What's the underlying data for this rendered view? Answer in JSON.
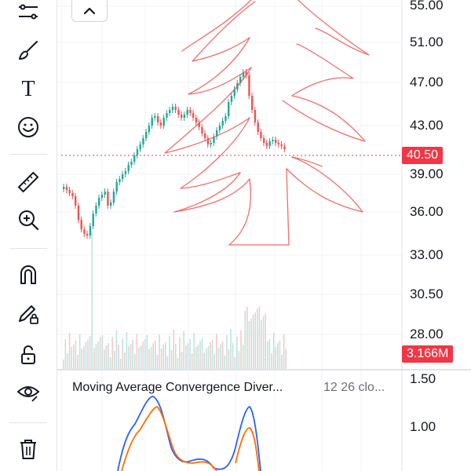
{
  "toolbar": {
    "tools": [
      {
        "icon": "trend-lines-icon"
      },
      {
        "icon": "brush-icon"
      },
      {
        "icon": "text-icon",
        "glyph": "T"
      },
      {
        "icon": "emoji-icon"
      },
      {
        "icon": "ruler-icon"
      },
      {
        "icon": "zoom-in-icon"
      },
      {
        "icon": "magnet-icon"
      },
      {
        "icon": "pencil-lock-icon"
      },
      {
        "icon": "lock-icon"
      },
      {
        "icon": "eye-icon"
      },
      {
        "icon": "trash-icon"
      }
    ]
  },
  "collapse_button": {
    "icon": "chevron-up-icon"
  },
  "price_axis": {
    "labels": [
      "55.00",
      "51.00",
      "47.00",
      "43.00",
      "39.00",
      "36.00",
      "33.00",
      "30.50",
      "28.00"
    ]
  },
  "current_price": {
    "value": "40.50",
    "color": "#f23645"
  },
  "volume": {
    "value": "3.166M",
    "color": "#f23645"
  },
  "macd": {
    "title": "Moving Average Convergence Diver...",
    "params": "12 26 clo...",
    "axis_labels": [
      "1.50",
      "1.00"
    ]
  },
  "colors": {
    "up": "#26a69a",
    "down": "#ef5350",
    "drawing": "#ef5350",
    "macd_line": "#2962ff",
    "signal_line": "#ff6d00"
  }
}
